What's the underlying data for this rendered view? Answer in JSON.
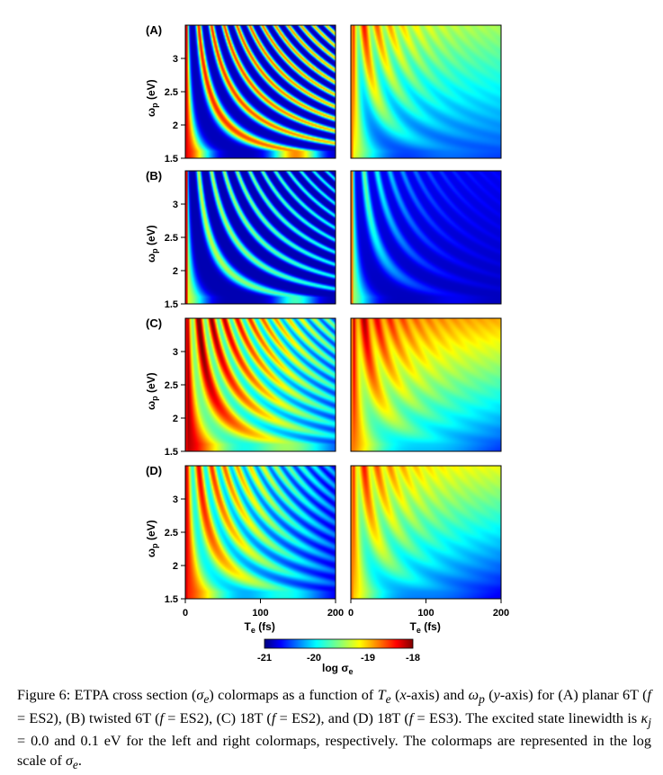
{
  "figure": {
    "panels": [
      {
        "label": "(A)",
        "kind": "A"
      },
      {
        "label": "(B)",
        "kind": "B"
      },
      {
        "label": "(C)",
        "kind": "C"
      },
      {
        "label": "(D)",
        "kind": "D"
      }
    ],
    "y_axis": {
      "label_main": "ω",
      "label_sub": "p",
      "label_unit": "(eV)",
      "ticks": [
        "1.5",
        "2",
        "2.5",
        "3"
      ],
      "range": [
        1.5,
        3.5
      ]
    },
    "x_axis": {
      "label_main": "T",
      "label_sub": "e",
      "label_unit": "(fs)",
      "left_ticks": [
        "0",
        "100",
        "200"
      ],
      "right_ticks": [
        "0",
        "100",
        "200"
      ],
      "range": [
        0,
        200
      ]
    },
    "colorbar": {
      "ticks": [
        "-21",
        "-20",
        "-19",
        "-18"
      ],
      "label_main": "log σ",
      "label_sub": "e",
      "range": [
        -21.3,
        -17.8
      ]
    },
    "colormap": "jet"
  },
  "caption": {
    "prefix": "Figure 6: ETPA cross section (",
    "sigma": "σ",
    "sigma_sub": "e",
    "part2": ") colormaps as a function of ",
    "T": "T",
    "T_sub": "e",
    "part3": " (",
    "xaxis": "x",
    "part4": "-axis) and ",
    "omega": "ω",
    "omega_sub": "p",
    "part5": " (",
    "yaxis": "y",
    "part6": "-axis) for (A) planar 6T (",
    "f1": "f",
    "part7": " = ES2), (B) twisted 6T (",
    "f2": "f",
    "part8": " = ES2), (C) 18T (",
    "f3": "f",
    "part9": " = ES2), and (D) 18T (",
    "f4": "f",
    "part10": " = ES3). The excited state linewidth is ",
    "kappa": "κ",
    "kappa_sub": "j",
    "part11": " = 0.0 and 0.1 eV for the left and right colormaps, respectively. The colormaps are represented in the log scale of ",
    "sigma2": "σ",
    "sigma2_sub": "e",
    "part12": "."
  }
}
